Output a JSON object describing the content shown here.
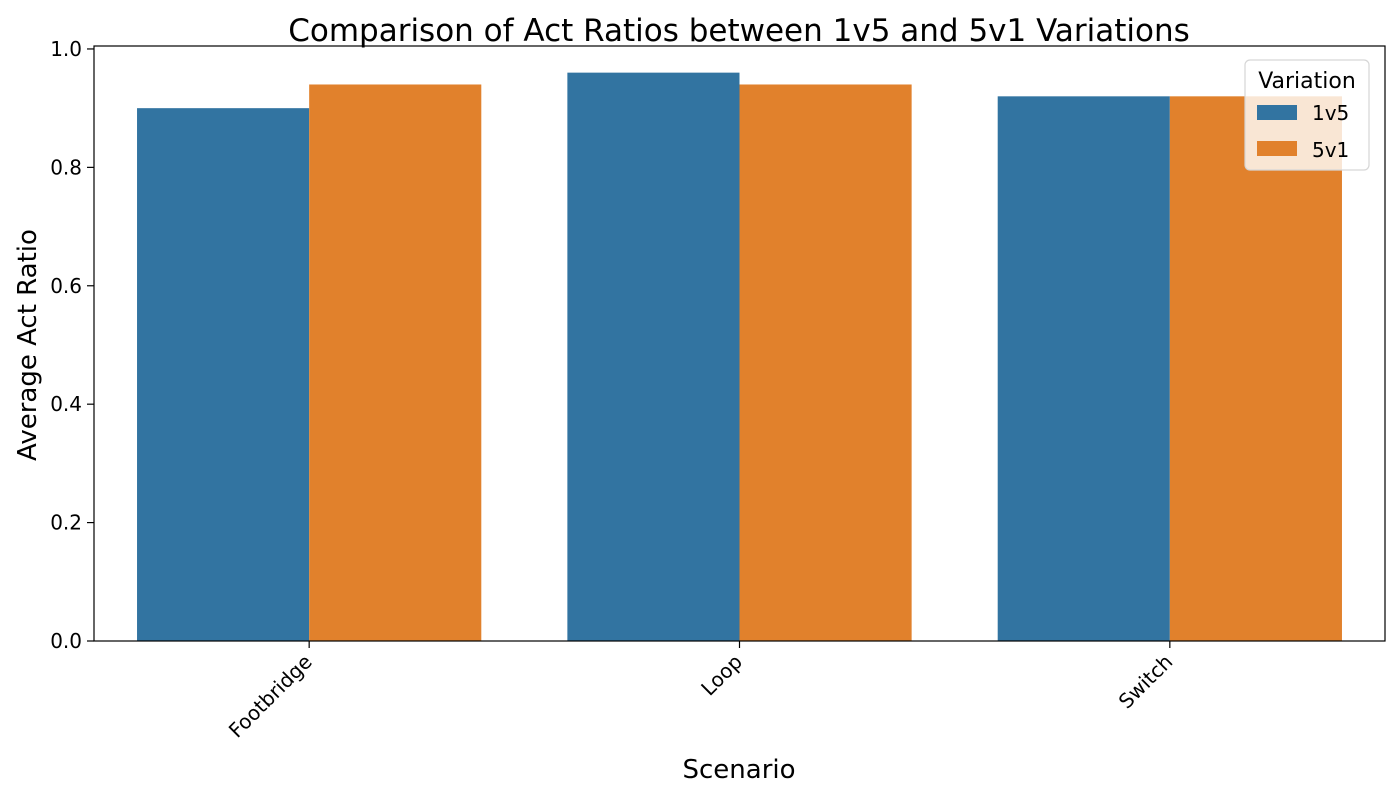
{
  "chart_data": {
    "type": "bar",
    "title": "Comparison of Act Ratios between 1v5 and 5v1 Variations",
    "xlabel": "Scenario",
    "ylabel": "Average Act Ratio",
    "categories": [
      "Footbridge",
      "Loop",
      "Switch"
    ],
    "series": [
      {
        "name": "1v5",
        "color": "#3274a1",
        "values": [
          0.9,
          0.96,
          0.92
        ]
      },
      {
        "name": "5v1",
        "color": "#e1812c",
        "values": [
          0.94,
          0.94,
          0.92
        ]
      }
    ],
    "ylim": [
      0,
      1.005
    ],
    "yticks": [
      "0.0",
      "0.2",
      "0.4",
      "0.6",
      "0.8",
      "1.0"
    ],
    "grid": false,
    "legend": {
      "title": "Variation",
      "placement": "top-right"
    }
  }
}
